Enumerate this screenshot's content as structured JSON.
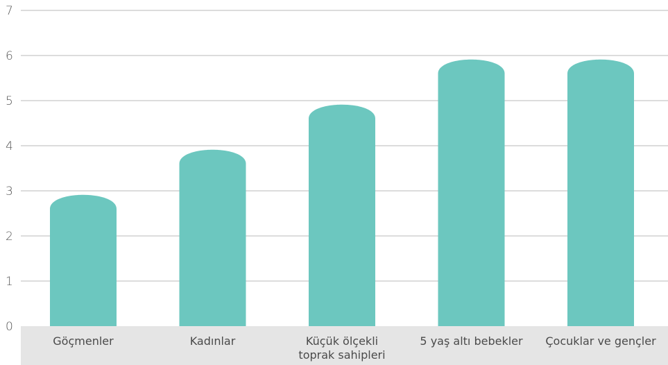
{
  "chart_data": {
    "type": "bar",
    "categories": [
      [
        "Göçmenler"
      ],
      [
        "Kadınlar"
      ],
      [
        "Küçük ölçekli",
        "toprak sahipleri"
      ],
      [
        "5 yaş altı bebekler"
      ],
      [
        "Çocuklar ve gençler"
      ]
    ],
    "values": [
      3,
      4,
      5,
      6,
      6
    ],
    "ylim": [
      0,
      7
    ],
    "yticks": [
      0,
      1,
      2,
      3,
      4,
      5,
      6,
      7
    ],
    "grid": true,
    "title": "",
    "xlabel": "",
    "ylabel": ""
  },
  "colors": {
    "bar": "#6cc7bf",
    "grid": "#c8c8c8",
    "axis_band": "#e5e5e5",
    "tick_text": "#555555",
    "category_text": "#4a4a4a"
  }
}
